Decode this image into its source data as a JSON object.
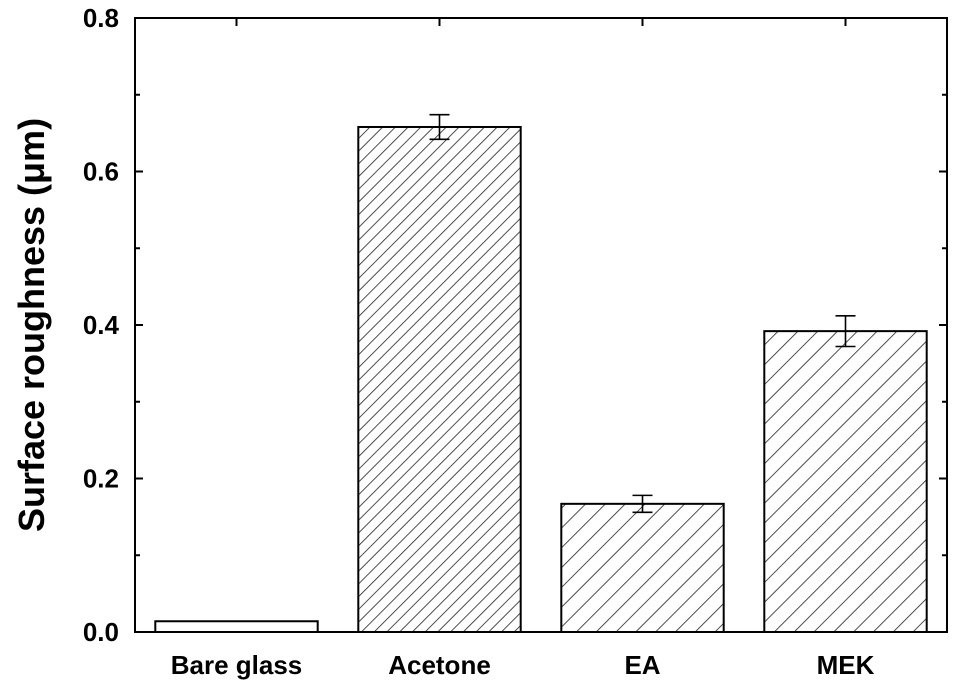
{
  "chart_data": {
    "type": "bar",
    "title": "",
    "xlabel": "",
    "ylabel": "Surface roughness (μm)",
    "ylim": [
      0,
      0.8
    ],
    "yticks": [
      "0.0",
      "0.2",
      "0.4",
      "0.6",
      "0.8"
    ],
    "categories": [
      "Bare glass",
      "Acetone",
      "EA",
      "MEK"
    ],
    "values": [
      0.014,
      0.658,
      0.167,
      0.392
    ],
    "errors": [
      0,
      0.016,
      0.011,
      0.02
    ],
    "patterns": [
      "none",
      "dense-hatch",
      "hatch",
      "hatch"
    ],
    "bar_fill": "#ffffff",
    "bar_stroke": "#000000"
  }
}
